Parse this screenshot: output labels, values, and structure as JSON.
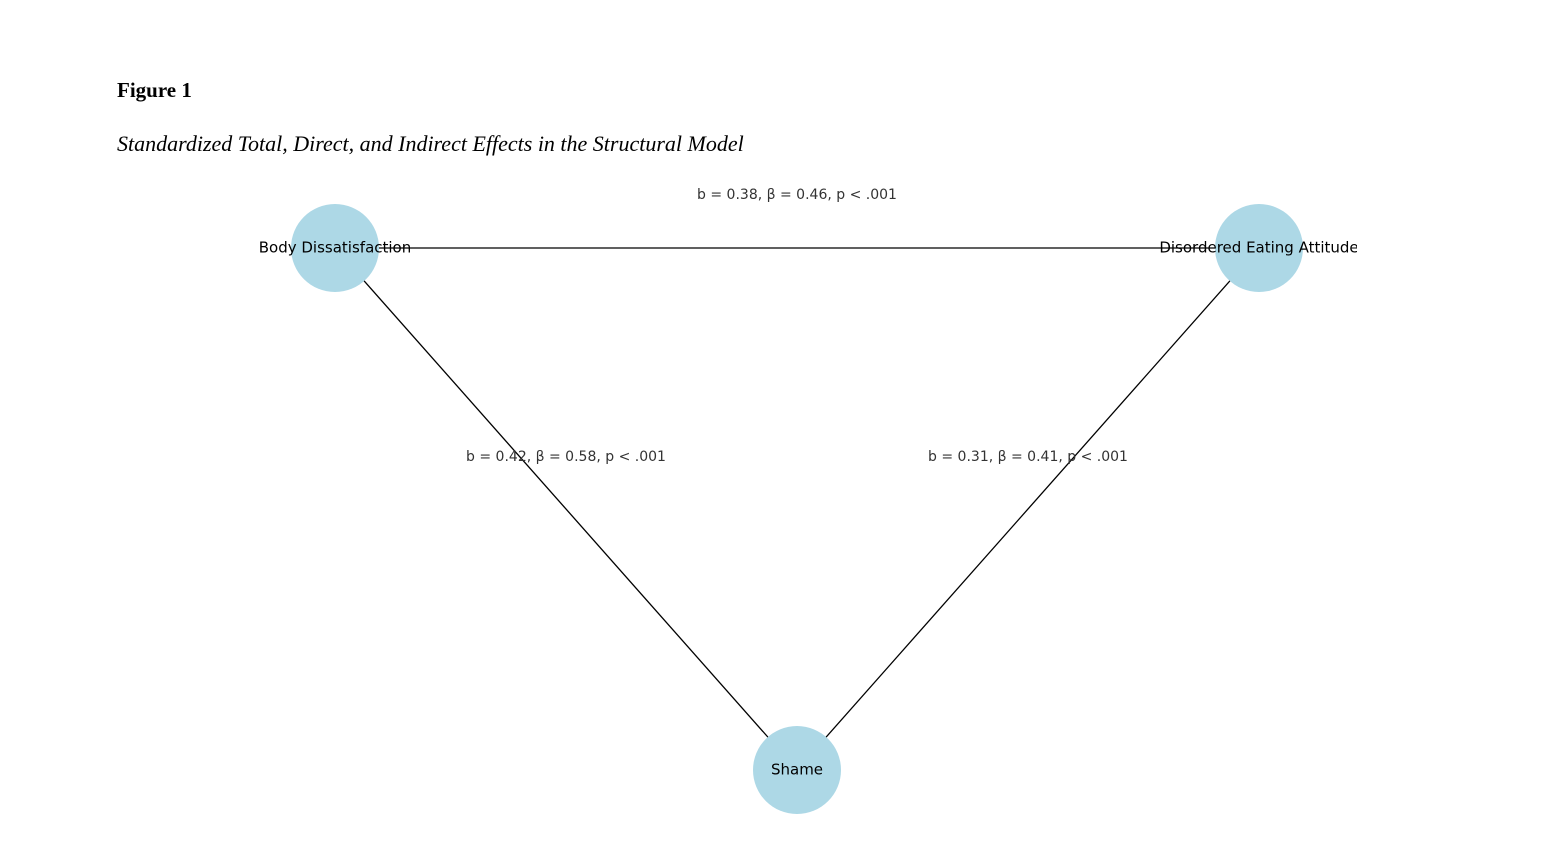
{
  "header": {
    "figure_number": "Figure 1",
    "title": "Standardized Total, Direct, and Indirect Effects in the Structural Model"
  },
  "nodes": [
    {
      "label": "Body Dissatisfaction"
    },
    {
      "label": "Disordered Eating Attitude"
    },
    {
      "label": "Shame"
    }
  ],
  "edges": [
    {
      "label": "b = 0.38, β = 0.46, p < .001"
    },
    {
      "label": "b = 0.42, β = 0.58, p < .001"
    },
    {
      "label": "b = 0.31, β = 0.41, p < .001"
    }
  ]
}
